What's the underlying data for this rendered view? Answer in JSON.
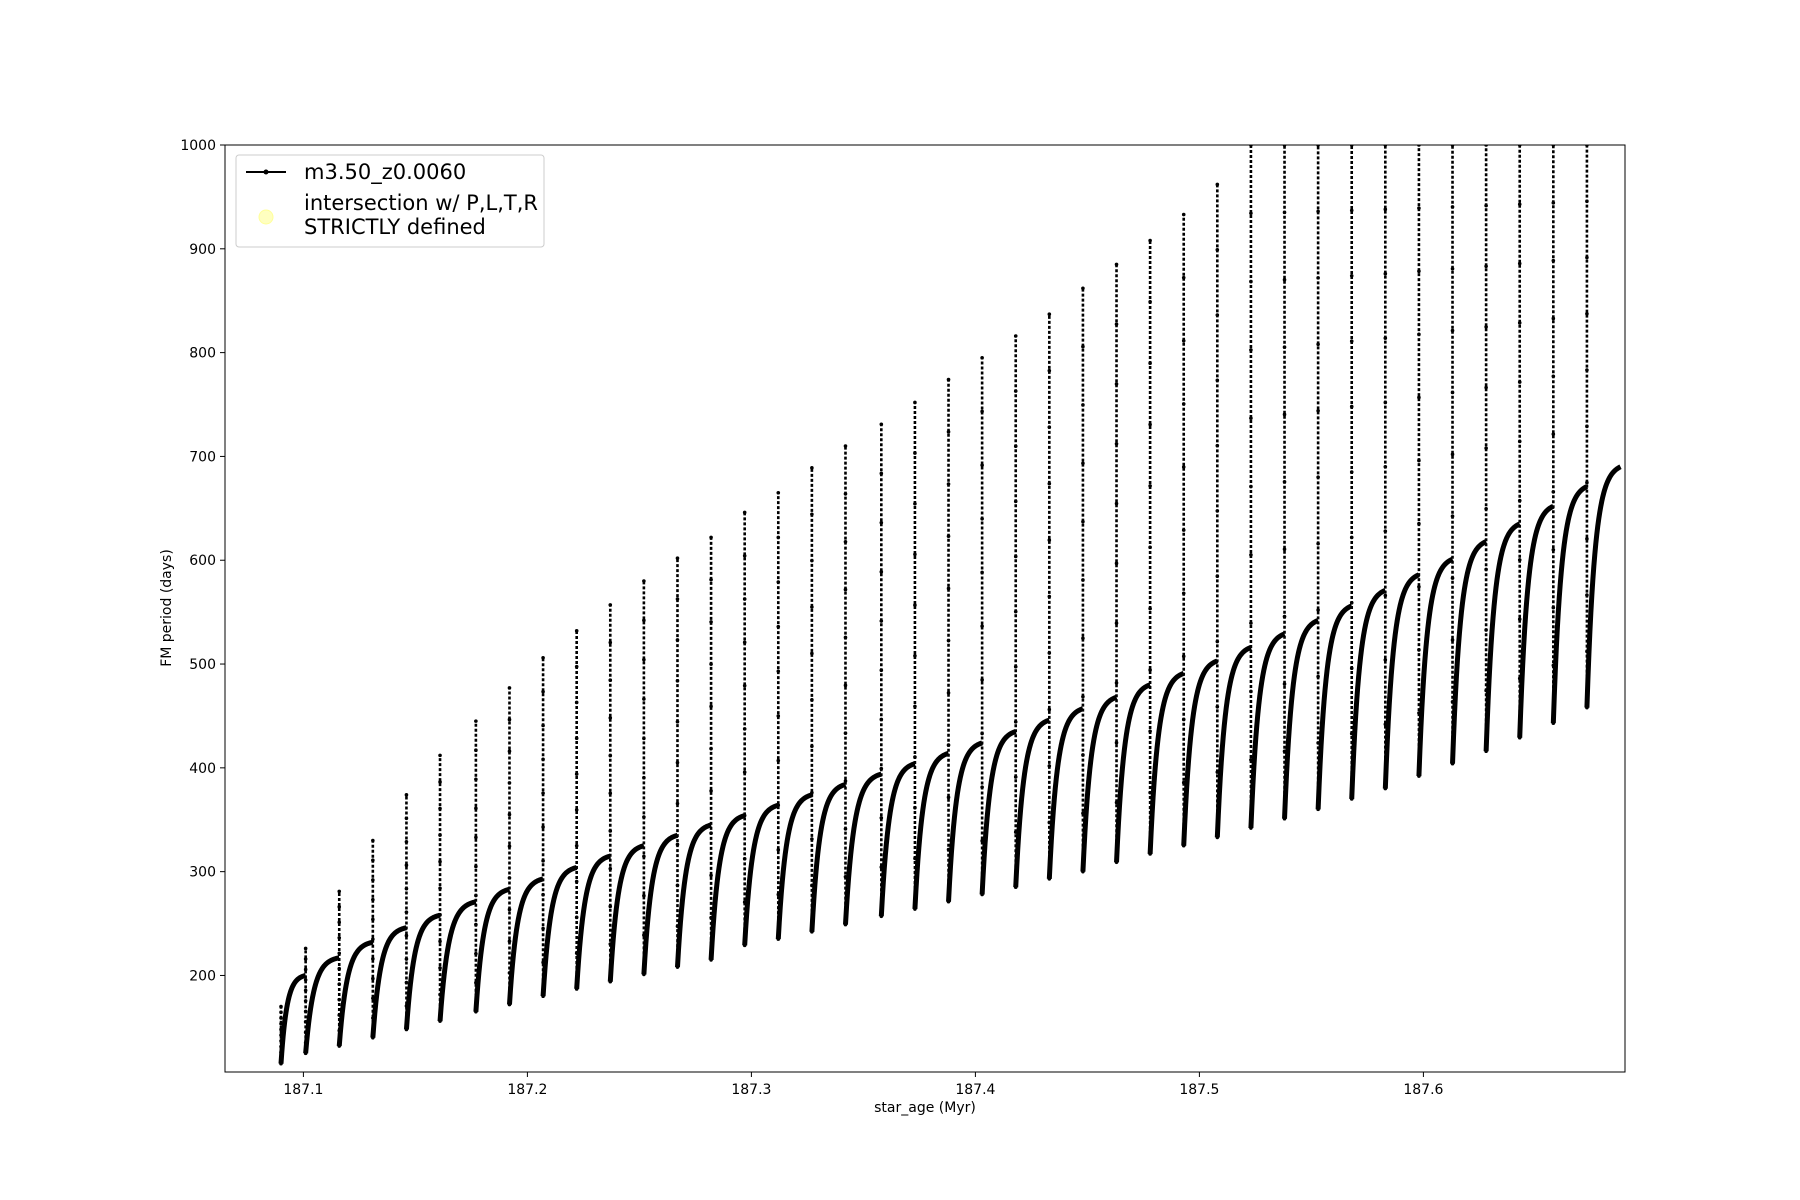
{
  "chart_data": {
    "type": "line",
    "title": "",
    "xlabel": "star_age (Myr)",
    "ylabel": "FM period (days)",
    "xlim": [
      187.065,
      187.69
    ],
    "ylim": [
      107,
      1000
    ],
    "xticks": [
      187.1,
      187.2,
      187.3,
      187.4,
      187.5,
      187.6
    ],
    "xtick_labels": [
      "187.1",
      "187.2",
      "187.3",
      "187.4",
      "187.5",
      "187.6"
    ],
    "yticks": [
      200,
      300,
      400,
      500,
      600,
      700,
      800,
      900,
      1000
    ],
    "ytick_labels": [
      "200",
      "300",
      "400",
      "500",
      "600",
      "700",
      "800",
      "900",
      "1000"
    ],
    "grid": false,
    "legend_position": "top-left",
    "legend": [
      {
        "label": "m3.50_z0.0060",
        "marker": "line-with-dots",
        "color": "#000000"
      },
      {
        "label": "intersection w/ P,L,T,R",
        "label_line2": "STRICTLY defined",
        "marker": "circle",
        "color": "#ffffc0"
      }
    ],
    "series": [
      {
        "name": "m3.50_z0.0060",
        "color": "#000000",
        "style": "sawtooth-pulse-cycles",
        "cycles": [
          {
            "start": 187.09,
            "end": 187.101,
            "min": 115,
            "plateau": 200,
            "spike": 170
          },
          {
            "start": 187.101,
            "end": 187.116,
            "min": 125,
            "plateau": 217,
            "spike": 226
          },
          {
            "start": 187.116,
            "end": 187.131,
            "min": 132,
            "plateau": 232,
            "spike": 281
          },
          {
            "start": 187.131,
            "end": 187.146,
            "min": 140,
            "plateau": 246,
            "spike": 330
          },
          {
            "start": 187.146,
            "end": 187.161,
            "min": 148,
            "plateau": 258,
            "spike": 374
          },
          {
            "start": 187.161,
            "end": 187.177,
            "min": 156,
            "plateau": 271,
            "spike": 412
          },
          {
            "start": 187.177,
            "end": 187.192,
            "min": 165,
            "plateau": 283,
            "spike": 445
          },
          {
            "start": 187.192,
            "end": 187.207,
            "min": 172,
            "plateau": 293,
            "spike": 477
          },
          {
            "start": 187.207,
            "end": 187.222,
            "min": 180,
            "plateau": 304,
            "spike": 506
          },
          {
            "start": 187.222,
            "end": 187.237,
            "min": 187,
            "plateau": 315,
            "spike": 532
          },
          {
            "start": 187.237,
            "end": 187.252,
            "min": 194,
            "plateau": 325,
            "spike": 557
          },
          {
            "start": 187.252,
            "end": 187.267,
            "min": 201,
            "plateau": 335,
            "spike": 580
          },
          {
            "start": 187.267,
            "end": 187.282,
            "min": 208,
            "plateau": 345,
            "spike": 602
          },
          {
            "start": 187.282,
            "end": 187.297,
            "min": 215,
            "plateau": 354,
            "spike": 622
          },
          {
            "start": 187.297,
            "end": 187.312,
            "min": 229,
            "plateau": 364,
            "spike": 646
          },
          {
            "start": 187.312,
            "end": 187.327,
            "min": 235,
            "plateau": 374,
            "spike": 665
          },
          {
            "start": 187.327,
            "end": 187.342,
            "min": 242,
            "plateau": 384,
            "spike": 689
          },
          {
            "start": 187.342,
            "end": 187.358,
            "min": 249,
            "plateau": 394,
            "spike": 710
          },
          {
            "start": 187.358,
            "end": 187.373,
            "min": 257,
            "plateau": 404,
            "spike": 731
          },
          {
            "start": 187.373,
            "end": 187.388,
            "min": 264,
            "plateau": 414,
            "spike": 752
          },
          {
            "start": 187.388,
            "end": 187.403,
            "min": 271,
            "plateau": 424,
            "spike": 774
          },
          {
            "start": 187.403,
            "end": 187.418,
            "min": 278,
            "plateau": 435,
            "spike": 795
          },
          {
            "start": 187.418,
            "end": 187.433,
            "min": 285,
            "plateau": 446,
            "spike": 816
          },
          {
            "start": 187.433,
            "end": 187.448,
            "min": 293,
            "plateau": 457,
            "spike": 837
          },
          {
            "start": 187.448,
            "end": 187.463,
            "min": 300,
            "plateau": 468,
            "spike": 862
          },
          {
            "start": 187.463,
            "end": 187.478,
            "min": 309,
            "plateau": 480,
            "spike": 885
          },
          {
            "start": 187.478,
            "end": 187.493,
            "min": 317,
            "plateau": 491,
            "spike": 908
          },
          {
            "start": 187.493,
            "end": 187.508,
            "min": 325,
            "plateau": 503,
            "spike": 933
          },
          {
            "start": 187.508,
            "end": 187.523,
            "min": 333,
            "plateau": 516,
            "spike": 962
          },
          {
            "start": 187.523,
            "end": 187.538,
            "min": 342,
            "plateau": 529,
            "spike": 1000
          },
          {
            "start": 187.538,
            "end": 187.553,
            "min": 351,
            "plateau": 542,
            "spike": 1000
          },
          {
            "start": 187.553,
            "end": 187.568,
            "min": 360,
            "plateau": 556,
            "spike": 1000
          },
          {
            "start": 187.568,
            "end": 187.583,
            "min": 370,
            "plateau": 571,
            "spike": 1000
          },
          {
            "start": 187.583,
            "end": 187.598,
            "min": 380,
            "plateau": 586,
            "spike": 1000
          },
          {
            "start": 187.598,
            "end": 187.613,
            "min": 392,
            "plateau": 601,
            "spike": 1000
          },
          {
            "start": 187.613,
            "end": 187.628,
            "min": 404,
            "plateau": 618,
            "spike": 1000
          },
          {
            "start": 187.628,
            "end": 187.643,
            "min": 416,
            "plateau": 635,
            "spike": 1000
          },
          {
            "start": 187.643,
            "end": 187.658,
            "min": 429,
            "plateau": 652,
            "spike": 1000
          },
          {
            "start": 187.658,
            "end": 187.673,
            "min": 443,
            "plateau": 671,
            "spike": 1000
          },
          {
            "start": 187.673,
            "end": 187.688,
            "min": 458,
            "plateau": 690,
            "spike": 1000
          }
        ]
      }
    ]
  }
}
